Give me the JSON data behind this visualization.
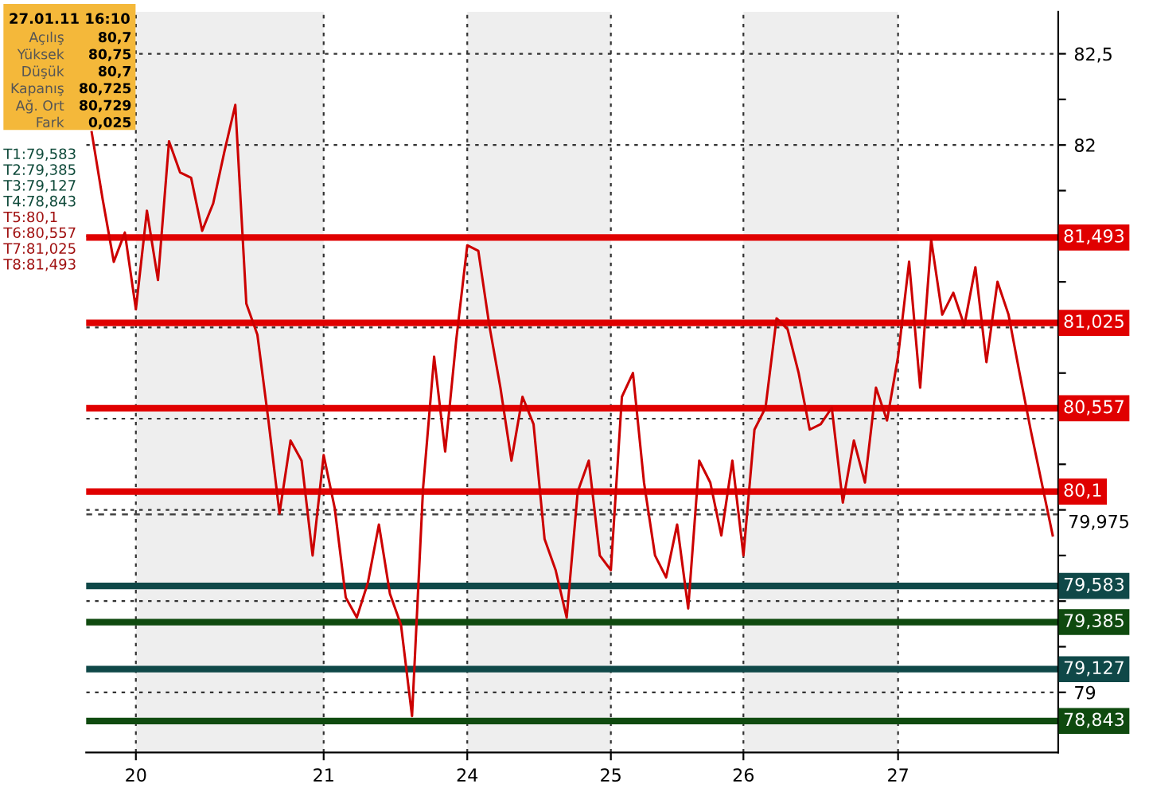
{
  "chart_data": {
    "type": "line",
    "categories": [
      null,
      null,
      null,
      null,
      "20",
      null,
      null,
      null,
      null,
      null,
      null,
      null,
      null,
      null,
      null,
      null,
      null,
      null,
      null,
      null,
      null,
      "21",
      null,
      null,
      null,
      null,
      null,
      null,
      null,
      null,
      null,
      null,
      null,
      null,
      "24",
      null,
      null,
      null,
      null,
      null,
      null,
      null,
      null,
      null,
      null,
      null,
      null,
      "25",
      null,
      null,
      null,
      null,
      null,
      null,
      null,
      null,
      null,
      null,
      null,
      "26",
      null,
      null,
      null,
      null,
      null,
      null,
      null,
      null,
      null,
      null,
      null,
      null,
      null,
      "27",
      null,
      null,
      null,
      null,
      null,
      null,
      null,
      null,
      null,
      null,
      null,
      null,
      null,
      null
    ],
    "series": [
      {
        "color": "#cc0000",
        "values": [
          82.07,
          81.7,
          81.36,
          81.52,
          81.1,
          81.64,
          81.26,
          82.02,
          81.85,
          81.82,
          81.53,
          81.68,
          81.96,
          82.22,
          81.13,
          80.96,
          80.49,
          79.98,
          80.38,
          80.27,
          79.75,
          80.3,
          80.01,
          79.52,
          79.41,
          79.6,
          79.92,
          79.54,
          79.37,
          78.87,
          80.12,
          80.84,
          80.32,
          80.93,
          81.45,
          81.42,
          81.01,
          80.67,
          80.27,
          80.62,
          80.47,
          79.84,
          79.67,
          79.41,
          80.1,
          80.27,
          79.75,
          79.67,
          80.62,
          80.75,
          80.15,
          79.75,
          79.63,
          79.92,
          79.46,
          80.27,
          80.15,
          79.86,
          80.27,
          79.75,
          80.44,
          80.56,
          81.05,
          80.99,
          80.75,
          80.44,
          80.47,
          80.56,
          80.04,
          80.38,
          80.15,
          80.67,
          80.49,
          80.84,
          81.36,
          80.67,
          81.48,
          81.07,
          81.19,
          81.01,
          81.33,
          80.81,
          81.25,
          81.07,
          80.75,
          80.44,
          80.15,
          79.86
        ]
      }
    ],
    "ylim": [
      78.67,
      82.73
    ],
    "yticks": [
      {
        "value": 79,
        "label": "79"
      },
      {
        "value": 79.25,
        "label": null
      },
      {
        "value": 79.5,
        "label": null
      },
      {
        "value": 79.75,
        "label": null
      },
      {
        "value": 80,
        "label": null
      },
      {
        "value": 80.25,
        "label": null
      },
      {
        "value": 80.5,
        "label": null
      },
      {
        "value": 80.75,
        "label": null
      },
      {
        "value": 81,
        "label": null
      },
      {
        "value": 81.25,
        "label": null
      },
      {
        "value": 81.5,
        "label": null
      },
      {
        "value": 81.75,
        "label": null
      },
      {
        "value": 82,
        "label": "82"
      },
      {
        "value": 82.25,
        "label": null
      },
      {
        "value": 82.5,
        "label": "82,5"
      }
    ],
    "grid": true,
    "bands": [
      {
        "axis": "x",
        "from": "20",
        "to": "21",
        "color": "#eeeeee"
      },
      {
        "axis": "x",
        "from": "24",
        "to": "25",
        "color": "#eeeeee"
      },
      {
        "axis": "x",
        "from": "26",
        "to": "27",
        "color": "#eeeeee"
      }
    ],
    "ref_lines": [
      {
        "axis": "y",
        "value": 81.493,
        "label": "81,493",
        "color": "#e00000"
      },
      {
        "axis": "y",
        "value": 81.025,
        "label": "81,025",
        "color": "#e00000"
      },
      {
        "axis": "y",
        "value": 80.557,
        "label": "80,557",
        "color": "#e00000"
      },
      {
        "axis": "y",
        "value": 80.1,
        "label": "80,1",
        "color": "#e00000"
      },
      {
        "axis": "y",
        "value": 79.583,
        "label": "79,583",
        "color": "#0f4848"
      },
      {
        "axis": "y",
        "value": 79.385,
        "label": "79,385",
        "color": "#0f4a0f"
      },
      {
        "axis": "y",
        "value": 79.127,
        "label": "79,127",
        "color": "#0f4848"
      },
      {
        "axis": "y",
        "value": 78.843,
        "label": "78,843",
        "color": "#0f4a0f"
      },
      {
        "axis": "y",
        "value": 79.975,
        "label": "79,975",
        "color": "#444444",
        "line_style": "dashed"
      }
    ],
    "annotations": [
      "27.01.11 16:10",
      "Açılış",
      "80,7",
      "Yüksek",
      "80,75",
      "Düşük",
      "80,7",
      "Kapanış",
      "80,725",
      "Ağ. Ort",
      "80,729",
      "Fark",
      "0,025",
      "T1:79,583",
      "T2:79,385",
      "T3:79,127",
      "T4:78,843",
      "T5:80,1",
      "T6:80,557",
      "T7:81,025",
      "T8:81,493"
    ]
  }
}
